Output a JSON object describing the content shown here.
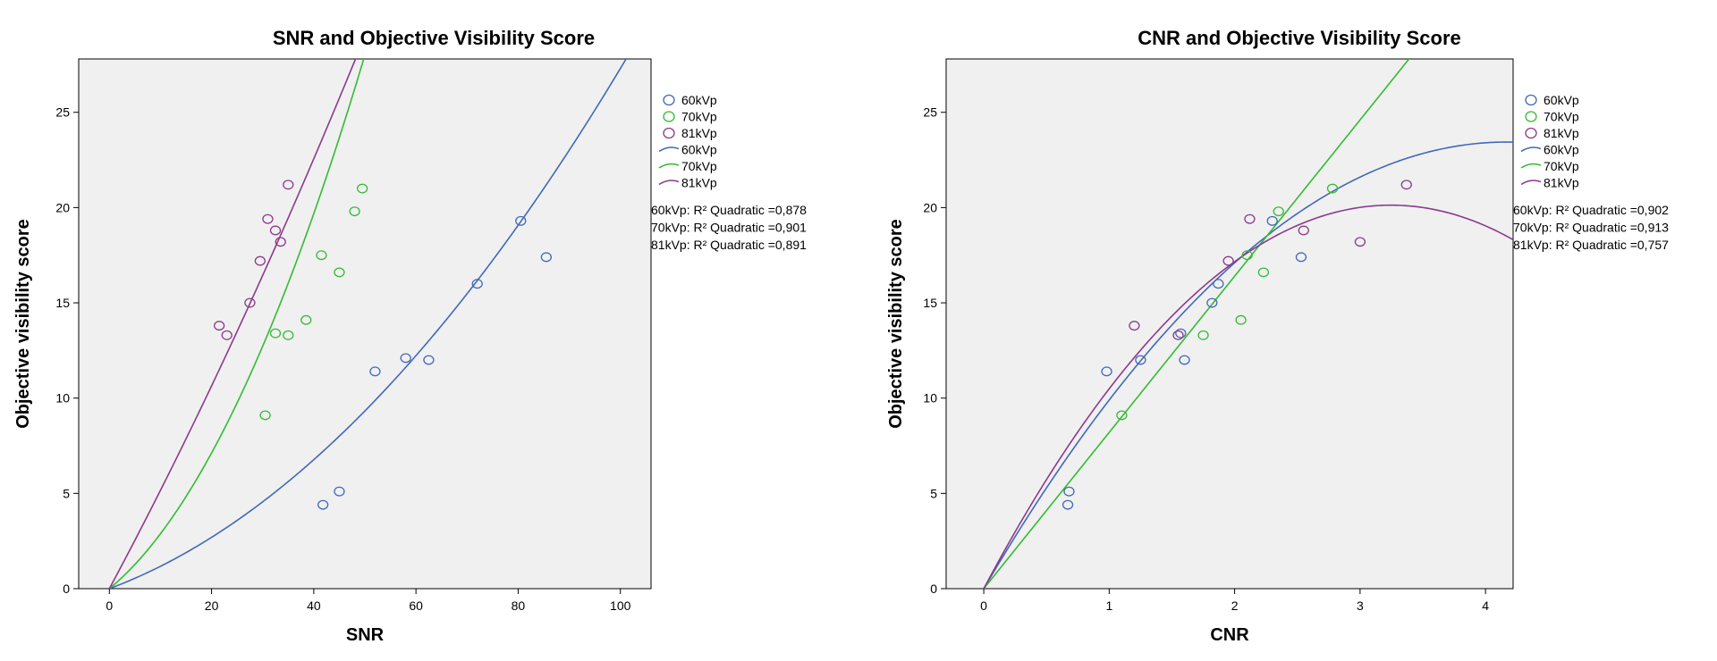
{
  "chart_data": [
    {
      "type": "scatter",
      "title": "SNR and Objective Visibility Score",
      "xlabel": "SNR",
      "ylabel": "Objective visibility score",
      "xlim": [
        -6,
        106
      ],
      "ylim": [
        0,
        27.8
      ],
      "xticks": [
        0,
        20,
        40,
        60,
        80,
        100
      ],
      "yticks": [
        0,
        5,
        10,
        15,
        20,
        25
      ],
      "grid": false,
      "plot_background": "#f0f0f0",
      "legend_position": "right",
      "series": [
        {
          "name": "60kVp",
          "color": "#4169b8",
          "points": [
            [
              41.8,
              4.4
            ],
            [
              45.0,
              5.1
            ],
            [
              52.0,
              11.4
            ],
            [
              58.0,
              12.1
            ],
            [
              62.5,
              12.0
            ],
            [
              72.0,
              16.0
            ],
            [
              80.5,
              19.3
            ],
            [
              85.5,
              17.4
            ]
          ]
        },
        {
          "name": "70kVp",
          "color": "#33bb33",
          "points": [
            [
              30.5,
              9.1
            ],
            [
              32.5,
              13.4
            ],
            [
              35.0,
              13.3
            ],
            [
              38.5,
              14.1
            ],
            [
              41.5,
              17.5
            ],
            [
              45.0,
              16.6
            ],
            [
              48.0,
              19.8
            ],
            [
              49.5,
              21.0
            ]
          ]
        },
        {
          "name": "81kVp",
          "color": "#8b3a8b",
          "points": [
            [
              21.5,
              13.8
            ],
            [
              23.0,
              13.3
            ],
            [
              27.5,
              15.0
            ],
            [
              29.5,
              17.2
            ],
            [
              31.0,
              19.4
            ],
            [
              32.5,
              18.8
            ],
            [
              33.5,
              18.2
            ],
            [
              35.0,
              21.2
            ]
          ]
        }
      ],
      "fits": [
        {
          "name": "60kVp",
          "color": "#4169b8",
          "coef": [
            0,
            0.1,
            0.00173
          ]
        },
        {
          "name": "70kVp",
          "color": "#33bb33",
          "coef": [
            0,
            0.22,
            0.0068
          ]
        },
        {
          "name": "81kVp",
          "color": "#8b3a8b",
          "coef": [
            0,
            0.5,
            0.0016
          ]
        }
      ],
      "r2": [
        "60kVp: R² Quadratic =0,878",
        "70kVp: R² Quadratic =0,901",
        "81kVp: R² Quadratic =0,891"
      ]
    },
    {
      "type": "scatter",
      "title": "CNR and Objective Visibility Score",
      "xlabel": "CNR",
      "ylabel": "Objective visibility score",
      "xlim": [
        -0.3,
        4.22
      ],
      "ylim": [
        0,
        27.8
      ],
      "xticks": [
        0,
        1,
        2,
        3,
        4
      ],
      "yticks": [
        0,
        5,
        10,
        15,
        20,
        25
      ],
      "grid": false,
      "plot_background": "#f0f0f0",
      "legend_position": "right",
      "series": [
        {
          "name": "60kVp",
          "color": "#4169b8",
          "points": [
            [
              0.67,
              4.4
            ],
            [
              0.68,
              5.1
            ],
            [
              0.98,
              11.4
            ],
            [
              1.25,
              12.0
            ],
            [
              1.57,
              13.4
            ],
            [
              1.6,
              12.0
            ],
            [
              1.82,
              15.0
            ],
            [
              1.87,
              16.0
            ],
            [
              2.3,
              19.3
            ],
            [
              2.53,
              17.4
            ]
          ]
        },
        {
          "name": "70kVp",
          "color": "#33bb33",
          "points": [
            [
              1.1,
              9.1
            ],
            [
              1.75,
              13.3
            ],
            [
              2.05,
              14.1
            ],
            [
              2.1,
              17.5
            ],
            [
              2.23,
              16.6
            ],
            [
              2.35,
              19.8
            ],
            [
              2.78,
              21.0
            ]
          ]
        },
        {
          "name": "81kVp",
          "color": "#8b3a8b",
          "points": [
            [
              1.2,
              13.8
            ],
            [
              1.55,
              13.3
            ],
            [
              1.95,
              17.2
            ],
            [
              2.12,
              19.4
            ],
            [
              2.55,
              18.8
            ],
            [
              3.0,
              18.2
            ],
            [
              3.37,
              21.2
            ]
          ]
        }
      ],
      "fits": [
        {
          "name": "60kVp",
          "color": "#4169b8",
          "coef": [
            0,
            11.25,
            -1.35
          ]
        },
        {
          "name": "70kVp",
          "color": "#33bb33",
          "coef": [
            0,
            8.2,
            0
          ]
        },
        {
          "name": "81kVp",
          "color": "#8b3a8b",
          "coef": [
            0,
            12.4,
            -1.91
          ]
        }
      ],
      "r2": [
        "60kVp: R² Quadratic =0,902",
        "70kVp: R² Quadratic =0,913",
        "81kVp: R² Quadratic =0,757"
      ]
    }
  ]
}
